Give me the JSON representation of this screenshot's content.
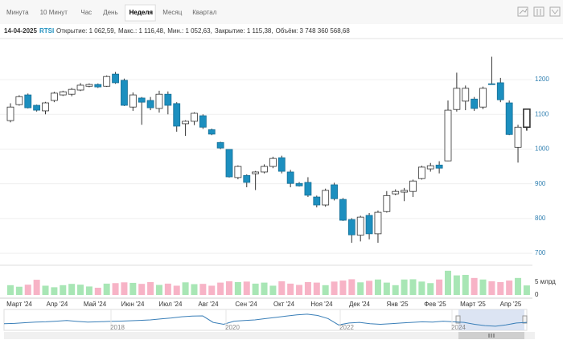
{
  "tabs": {
    "items": [
      "Минута",
      "10 Минут",
      "Час",
      "День",
      "Неделя",
      "Месяц",
      "Квартал"
    ],
    "active": "Неделя"
  },
  "info": {
    "date": "14-04-2025",
    "symbol": "RTSI",
    "items": [
      "Открытие: 1 062,59,",
      "Макс.: 1 116,48,",
      "Мин.: 1 052,63,",
      "Закрытие: 1 115,38,",
      "Объём: 3 748 360 568,68"
    ]
  },
  "chart_data": {
    "type": "candlestick",
    "up_color": "#ffffff",
    "down_color": "#1c8fbf",
    "volume_up_color": "#a8e6b5",
    "volume_down_color": "#f7b3c6",
    "open": [
      1082,
      1128,
      1156,
      1126,
      1110,
      1140,
      1156,
      1158,
      1170,
      1181,
      1186,
      1181,
      1216,
      1198,
      1121,
      1147,
      1140,
      1117,
      1158,
      1131,
      1073,
      1080,
      1096,
      1056,
      1019,
      999,
      918,
      924,
      929,
      934,
      950,
      975,
      934,
      901,
      904,
      862,
      839,
      897,
      855,
      797,
      752,
      809,
      756,
      820,
      871,
      876,
      878,
      915,
      943,
      954,
      966,
      1114,
      1138,
      1144,
      1121,
      1188,
      1191,
      1133,
      1005,
      1063
    ],
    "high": [
      1132,
      1155,
      1160,
      1128,
      1136,
      1165,
      1168,
      1176,
      1190,
      1189,
      1189,
      1212,
      1222,
      1203,
      1163,
      1150,
      1150,
      1168,
      1166,
      1135,
      1083,
      1106,
      1100,
      1059,
      1021,
      1000,
      953,
      927,
      937,
      956,
      978,
      981,
      940,
      905,
      919,
      866,
      886,
      903,
      859,
      801,
      808,
      816,
      823,
      879,
      884,
      888,
      912,
      952,
      960,
      965,
      1140,
      1220,
      1183,
      1150,
      1180,
      1266,
      1205,
      1140,
      1070,
      1116
    ],
    "low": [
      1077,
      1125,
      1117,
      1108,
      1100,
      1135,
      1153,
      1152,
      1167,
      1178,
      1176,
      1179,
      1188,
      1124,
      1110,
      1070,
      1112,
      1105,
      1100,
      1050,
      1038,
      1069,
      1058,
      1040,
      1000,
      918,
      913,
      890,
      882,
      930,
      945,
      930,
      890,
      892,
      862,
      832,
      834,
      852,
      793,
      730,
      734,
      740,
      730,
      817,
      867,
      850,
      862,
      912,
      935,
      930,
      965,
      1108,
      1112,
      1110,
      1115,
      1186,
      1135,
      1040,
      961,
      1053
    ],
    "close": [
      1121,
      1151,
      1119,
      1112,
      1133,
      1161,
      1165,
      1172,
      1184,
      1186,
      1179,
      1209,
      1191,
      1126,
      1156,
      1135,
      1119,
      1158,
      1126,
      1066,
      1080,
      1103,
      1063,
      1043,
      1003,
      920,
      950,
      904,
      934,
      950,
      973,
      936,
      901,
      894,
      867,
      839,
      881,
      857,
      795,
      753,
      804,
      756,
      818,
      866,
      878,
      881,
      908,
      948,
      952,
      945,
      1112,
      1175,
      1175,
      1117,
      1175,
      1186,
      1142,
      1042,
      1063,
      1115
    ],
    "ylim": [
      677,
      1302
    ],
    "yticks": [
      700,
      800,
      900,
      1000,
      1100,
      1200
    ],
    "volume": {
      "values": [
        3.8,
        3.2,
        4.0,
        5.9,
        3.6,
        3.0,
        3.8,
        4.3,
        4.0,
        3.3,
        2.8,
        4.4,
        4.6,
        4.9,
        4.7,
        4.3,
        5.0,
        3.9,
        4.4,
        3.6,
        4.9,
        4.2,
        4.3,
        3.6,
        4.8,
        5.3,
        5.0,
        5.2,
        4.4,
        4.8,
        3.6,
        5.3,
        4.4,
        3.9,
        5.0,
        4.8,
        3.8,
        5.2,
        5.6,
        6.1,
        4.9,
        5.5,
        6.0,
        4.8,
        3.8,
        6.0,
        6.1,
        5.2,
        4.6,
        6.0,
        9.4,
        7.6,
        7.8,
        6.6,
        6.0,
        5.3,
        5.0,
        5.6,
        6.6,
        3.7
      ],
      "ylim": [
        0,
        10.6
      ],
      "yticks": [
        0,
        {
          "value": 5,
          "label": "5 млрд"
        }
      ]
    },
    "x_labels": [
      "Март '24",
      "Апр '24",
      "Май '24",
      "Июн '24",
      "Июл '24",
      "Авг '24",
      "Сен '24",
      "Окт '24",
      "Ноя '24",
      "Дек '24",
      "Янв '25",
      "Фев '25",
      "Март '25",
      "Апр '25"
    ],
    "navigator": {
      "years": [
        "2018",
        "2020",
        "2022",
        "2024"
      ],
      "ylim": [
        600,
        2000
      ],
      "color": "#3a7fb8",
      "values": [
        1000,
        1020,
        1080,
        1120,
        1150,
        1200,
        1250,
        1180,
        1120,
        1150,
        1180,
        1200,
        1230,
        1260,
        1300,
        1380,
        1450,
        1550,
        1600,
        1620,
        1100,
        950,
        1200,
        1250,
        1300,
        1400,
        1500,
        1600,
        1700,
        1750,
        1650,
        1400,
        900,
        1050,
        1100,
        1000,
        950,
        1000,
        1050,
        1100,
        1150,
        1120,
        1200,
        1150,
        1100,
        950,
        850,
        800,
        900,
        1050,
        1100
      ]
    }
  }
}
